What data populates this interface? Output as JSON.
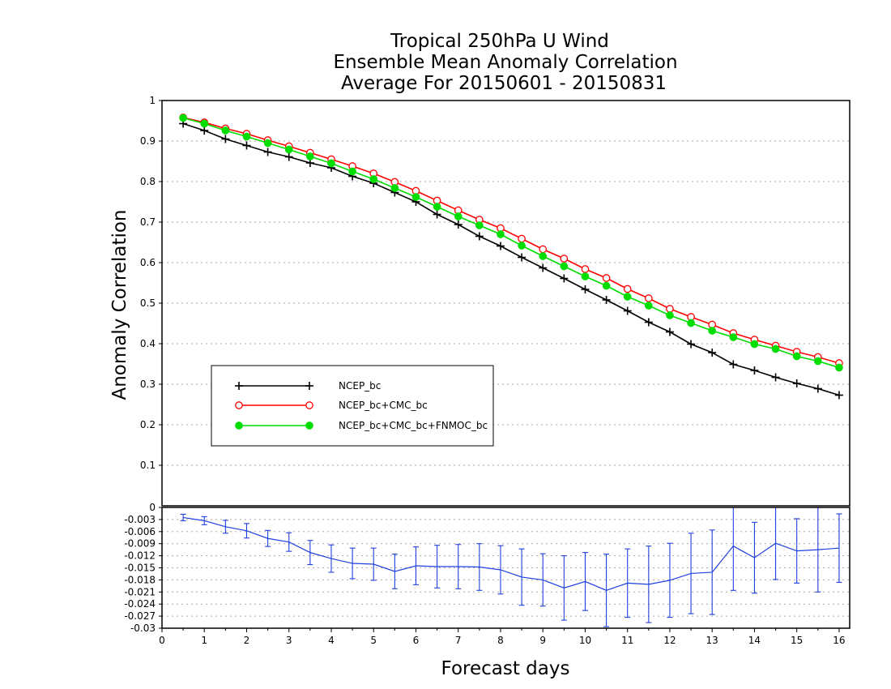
{
  "chart_data": [
    {
      "type": "line",
      "title": [
        "Tropical 250hPa U Wind",
        "Ensemble Mean Anomaly Correlation",
        "Average For 20150601 - 20150831"
      ],
      "xlabel": "Forecast days",
      "ylabel": "Anomaly Correlation",
      "xlim": [
        0,
        16.25
      ],
      "ylim": [
        0,
        1
      ],
      "x_ticks": [
        "0",
        "1",
        "2",
        "3",
        "4",
        "5",
        "6",
        "7",
        "8",
        "9",
        "10",
        "11",
        "12",
        "13",
        "14",
        "15",
        "16"
      ],
      "y_ticks": [
        "0.1",
        "0.2",
        "0.3",
        "0.4",
        "0.5",
        "0.6",
        "0.7",
        "0.8",
        "0.9",
        "1"
      ],
      "grid": "horizontal dotted",
      "legend_position": "lower-left",
      "x": [
        0.5,
        1,
        1.5,
        2,
        2.5,
        3,
        3.5,
        4,
        4.5,
        5,
        5.5,
        6,
        6.5,
        7,
        7.5,
        8,
        8.5,
        9,
        9.5,
        10,
        10.5,
        11,
        11.5,
        12,
        12.5,
        13,
        13.5,
        14,
        14.5,
        15,
        15.5,
        16
      ],
      "series": [
        {
          "name": "NCEP_bc",
          "color": "#000000",
          "marker": "plus",
          "values": [
            0.943,
            0.926,
            0.905,
            0.889,
            0.873,
            0.861,
            0.846,
            0.834,
            0.813,
            0.796,
            0.773,
            0.75,
            0.719,
            0.694,
            0.665,
            0.641,
            0.613,
            0.587,
            0.561,
            0.534,
            0.508,
            0.481,
            0.453,
            0.429,
            0.399,
            0.378,
            0.349,
            0.334,
            0.317,
            0.302,
            0.289,
            0.273
          ]
        },
        {
          "name": "NCEP_bc+CMC_bc",
          "color": "#ff0000",
          "marker": "open-circle",
          "values": [
            0.958,
            0.946,
            0.931,
            0.918,
            0.902,
            0.887,
            0.871,
            0.855,
            0.838,
            0.82,
            0.799,
            0.777,
            0.753,
            0.729,
            0.706,
            0.685,
            0.659,
            0.633,
            0.61,
            0.584,
            0.562,
            0.535,
            0.512,
            0.486,
            0.466,
            0.447,
            0.426,
            0.41,
            0.395,
            0.38,
            0.367,
            0.352
          ]
        },
        {
          "name": "NCEP_bc+CMC_bc+FNMOC_bc",
          "color": "#00dd00",
          "marker": "filled-circle",
          "values": [
            0.957,
            0.943,
            0.926,
            0.911,
            0.895,
            0.879,
            0.862,
            0.845,
            0.825,
            0.806,
            0.784,
            0.762,
            0.738,
            0.714,
            0.692,
            0.67,
            0.642,
            0.616,
            0.591,
            0.566,
            0.543,
            0.516,
            0.494,
            0.47,
            0.451,
            0.432,
            0.416,
            0.399,
            0.387,
            0.369,
            0.357,
            0.341
          ]
        }
      ]
    },
    {
      "type": "line",
      "xlabel": "Forecast days",
      "xlim": [
        0,
        16.25
      ],
      "ylim": [
        -0.03,
        0
      ],
      "y_ticks": [
        "-0.03",
        "-0.027",
        "-0.024",
        "-0.021",
        "-0.018",
        "-0.015",
        "-0.012",
        "-0.009",
        "-0.006",
        "-0.003",
        "0"
      ],
      "grid": "horizontal dotted",
      "error_bars": true,
      "x": [
        0.5,
        1,
        1.5,
        2,
        2.5,
        3,
        3.5,
        4,
        4.5,
        5,
        5.5,
        6,
        6.5,
        7,
        7.5,
        8,
        8.5,
        9,
        9.5,
        10,
        10.5,
        11,
        11.5,
        12,
        12.5,
        13,
        13.5,
        14,
        14.5,
        15,
        15.5,
        16
      ],
      "series": [
        {
          "color": "#2040e0",
          "values": [
            -0.0025,
            -0.0033,
            -0.0048,
            -0.0058,
            -0.0077,
            -0.0086,
            -0.0112,
            -0.0127,
            -0.0139,
            -0.0141,
            -0.0159,
            -0.0145,
            -0.0147,
            -0.0147,
            -0.0148,
            -0.0155,
            -0.0173,
            -0.018,
            -0.02,
            -0.0184,
            -0.0206,
            -0.0188,
            -0.0191,
            -0.0181,
            -0.0164,
            -0.0161,
            -0.0096,
            -0.0125,
            -0.0089,
            -0.0108,
            -0.0105,
            -0.0101
          ],
          "error": [
            0.0008,
            0.001,
            0.0016,
            0.0018,
            0.002,
            0.0023,
            0.003,
            0.0034,
            0.0038,
            0.004,
            0.0043,
            0.0047,
            0.0053,
            0.0055,
            0.0058,
            0.006,
            0.007,
            0.0065,
            0.008,
            0.0072,
            0.009,
            0.0085,
            0.0095,
            0.0092,
            0.01,
            0.0105,
            0.011,
            0.0088,
            0.009,
            0.008,
            0.0105,
            0.0085
          ]
        }
      ]
    }
  ]
}
